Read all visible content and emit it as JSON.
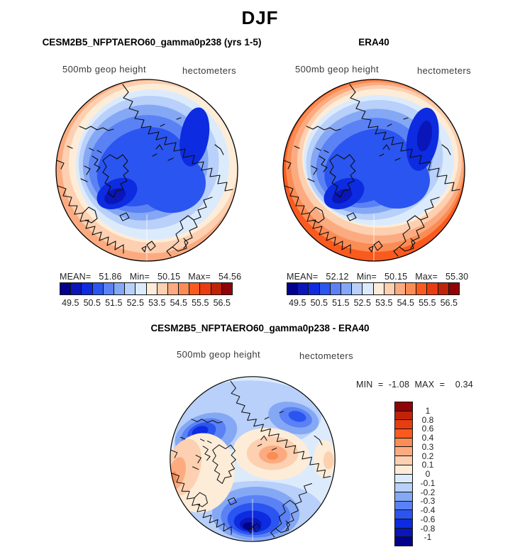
{
  "page_title": "DJF",
  "palette": [
    "#02028c",
    "#0a16b8",
    "#0d2be0",
    "#2b55f0",
    "#5a82f5",
    "#85a8f5",
    "#b8d0fa",
    "#dcebfc",
    "#fdecd7",
    "#fcd0b0",
    "#fcab80",
    "#fa8c55",
    "#fa5a1e",
    "#e93c10",
    "#bf2408",
    "#8e0408"
  ],
  "panels": {
    "model": {
      "title": "CESM2B5_NFPTAERO60_gamma0p238 (yrs 1-5)",
      "field_label": "500mb geop height",
      "units_label": "hectometers",
      "stats_line": "MEAN=   51.86   Min=   50.15   Max=   54.56",
      "ticks": [
        "49.5",
        "50.5",
        "51.5",
        "52.5",
        "53.5",
        "54.5",
        "55.5",
        "56.5"
      ]
    },
    "era40": {
      "title": "ERA40",
      "field_label": "500mb geop height",
      "units_label": "hectometers",
      "stats_line": "MEAN=   52.12   Min=   50.15   Max=   55.30",
      "ticks": [
        "49.5",
        "50.5",
        "51.5",
        "52.5",
        "53.5",
        "54.5",
        "55.5",
        "56.5"
      ]
    },
    "diff": {
      "title": "CESM2B5_NFPTAERO60_gamma0p238 - ERA40",
      "field_label": "500mb geop height",
      "units_label": "hectometers",
      "stats_line": "MIN  =  -1.08  MAX  =    0.34",
      "ticks": [
        "1",
        "0.8",
        "0.6",
        "0.4",
        "0.3",
        "0.2",
        "0.1",
        "0",
        "-0.1",
        "-0.2",
        "-0.3",
        "-0.4",
        "-0.6",
        "-0.8",
        "-1"
      ]
    }
  },
  "chart_data": [
    {
      "type": "heatmap",
      "variant": "filled_contour_polar_stereographic_map",
      "season": "DJF",
      "title": "CESM2B5_NFPTAERO60_gamma0p238 (yrs 1-5)",
      "variable": "500mb geop height",
      "units": "hectometers",
      "mean": 51.86,
      "min": 50.15,
      "max": 54.56,
      "contour_levels": [
        49.5,
        50.0,
        50.5,
        51.0,
        51.5,
        52.0,
        52.5,
        53.0,
        53.5,
        54.0,
        54.5,
        55.0,
        55.5,
        56.0,
        56.5
      ],
      "legend_ticks": [
        49.5,
        50.5,
        51.5,
        52.5,
        53.5,
        54.5,
        55.5,
        56.5
      ],
      "legend_orientation": "horizontal",
      "colormap": "16-band blue-white-red diverging",
      "pattern": "low heights (blue) over the Arctic with minima over the Canadian Archipelago and eastern Siberia; higher heights (orange) toward the map rim at lower latitudes"
    },
    {
      "type": "heatmap",
      "variant": "filled_contour_polar_stereographic_map",
      "season": "DJF",
      "title": "ERA40",
      "variable": "500mb geop height",
      "units": "hectometers",
      "mean": 52.12,
      "min": 50.15,
      "max": 55.3,
      "contour_levels": [
        49.5,
        50.0,
        50.5,
        51.0,
        51.5,
        52.0,
        52.5,
        53.0,
        53.5,
        54.0,
        54.5,
        55.0,
        55.5,
        56.0,
        56.5
      ],
      "legend_ticks": [
        49.5,
        50.5,
        51.5,
        52.5,
        53.5,
        54.5,
        55.5,
        56.5
      ],
      "legend_orientation": "horizontal",
      "colormap": "16-band blue-white-red diverging",
      "pattern": "similar polar low as model panel but stronger warm (orange) ring at the rim, especially over the North Atlantic/Europe sector"
    },
    {
      "type": "heatmap",
      "variant": "filled_contour_polar_stereographic_difference_map",
      "season": "DJF",
      "title": "CESM2B5_NFPTAERO60_gamma0p238 - ERA40",
      "variable": "500mb geop height",
      "units": "hectometers",
      "min": -1.08,
      "max": 0.34,
      "contour_levels": [
        -1,
        -0.8,
        -0.6,
        -0.4,
        -0.3,
        -0.2,
        -0.1,
        0,
        0.1,
        0.2,
        0.3,
        0.4,
        0.6,
        0.8,
        1
      ],
      "legend_ticks": [
        1,
        0.8,
        0.6,
        0.4,
        0.3,
        0.2,
        0.1,
        0,
        -0.1,
        -0.2,
        -0.3,
        -0.4,
        -0.6,
        -0.8,
        -1
      ],
      "legend_orientation": "vertical",
      "colormap": "16-band blue-white-red diverging",
      "pattern": "negative differences (blue) over Siberia, the North Pacific and a deep minimum near the UK/Scandinavia; positive differences (orange) over the central Arctic and the lower-left rim"
    }
  ]
}
